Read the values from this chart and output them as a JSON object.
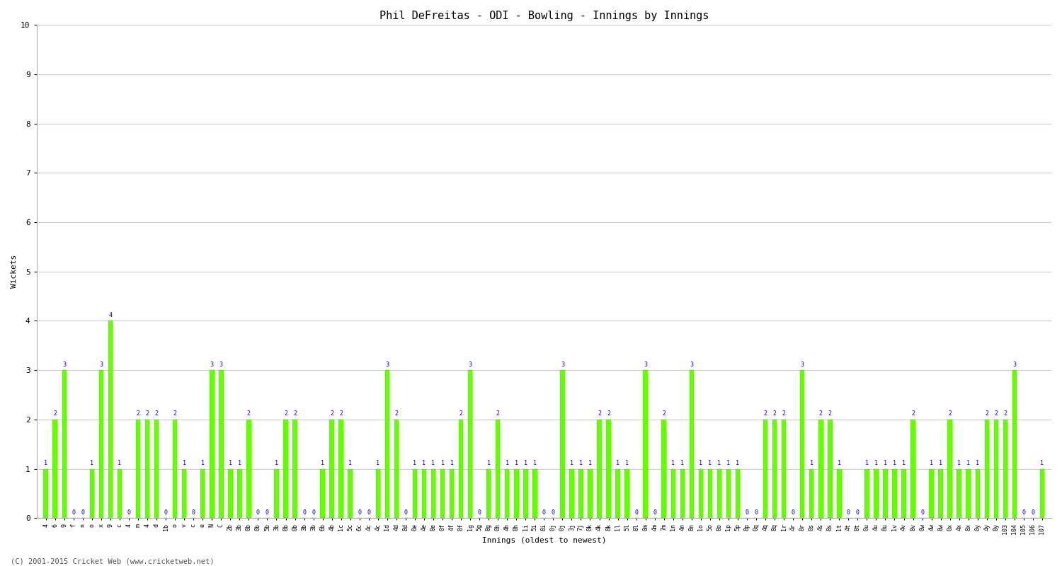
{
  "title": "Phil DeFreitas - ODI - Bowling - Innings by Innings",
  "ylabel": "Wickets",
  "xlabel": "Innings (oldest to newest)",
  "bar_color": "#66ff00",
  "bar_edge_color": "#55cc00",
  "label_color": "#0000cc",
  "background_color": "#ffffff",
  "grid_color": "#cccccc",
  "ylim": [
    0,
    10
  ],
  "yticks": [
    0,
    1,
    2,
    3,
    4,
    5,
    6,
    7,
    8,
    9,
    10
  ],
  "copyright": "(C) 2001-2015 Cricket Web (www.cricketweb.net)",
  "values": [
    1,
    2,
    3,
    0,
    0,
    1,
    3,
    4,
    1,
    0,
    2,
    2,
    2,
    0,
    2,
    1,
    0,
    1,
    3,
    3,
    1,
    1,
    2,
    0,
    0,
    1,
    2,
    2,
    0,
    0,
    1,
    2,
    2,
    1,
    0,
    0,
    1,
    3,
    2,
    0,
    1,
    1,
    1,
    1,
    1,
    2,
    3,
    0,
    1,
    2,
    1,
    1,
    1,
    1,
    0,
    0,
    3,
    1,
    1,
    1,
    2,
    2,
    1,
    1,
    0,
    3,
    0,
    2,
    1,
    1,
    3,
    1,
    1,
    1,
    1,
    1,
    0,
    0,
    2,
    2,
    2,
    0,
    3,
    1,
    2,
    2,
    1,
    0,
    0,
    1,
    1,
    1,
    1,
    1,
    2,
    0,
    1,
    1,
    2,
    1,
    1,
    1,
    2,
    2,
    2,
    3,
    0,
    0,
    1
  ],
  "x_labels": [
    "4",
    "6",
    "9",
    "f",
    "n",
    "o",
    "x",
    "9",
    "c",
    "4",
    "m",
    "4",
    "d",
    "1b",
    "o",
    "v",
    "c",
    "e",
    "N",
    "C",
    "2b",
    "3b",
    "0b",
    "0b",
    "5b",
    "3b",
    "8b",
    "0b",
    "3b",
    "3b",
    "6b",
    "4b",
    "1c",
    "5c",
    "6c",
    "4c",
    "4c",
    "1d",
    "4d",
    "8d",
    "0e",
    "4e",
    "8e",
    "0f",
    "4f",
    "8f",
    "1g",
    "5g",
    "8g",
    "0h",
    "4h",
    "8h",
    "1i",
    "5i",
    "8i",
    "0j",
    "0j",
    "3j",
    "7j",
    "0k",
    "4k",
    "8k",
    "1l",
    "5l",
    "8l",
    "0m",
    "4m",
    "7m",
    "1n",
    "4n",
    "8n",
    "1o",
    "5o",
    "8o",
    "1p",
    "5p",
    "8p",
    "0q",
    "4q",
    "8q",
    "1r",
    "4r",
    "8r",
    "0s",
    "4s",
    "8s",
    "1t",
    "4t",
    "8t",
    "0u",
    "4u",
    "8u",
    "1v",
    "4v",
    "8v",
    "0w",
    "4w",
    "8w",
    "0x",
    "4x",
    "8x",
    "0y",
    "4y",
    "8y",
    "103",
    "104",
    "105",
    "106",
    "107"
  ],
  "title_fontsize": 11,
  "ylabel_fontsize": 8,
  "xlabel_fontsize": 8,
  "ytick_fontsize": 8,
  "xtick_fontsize": 6,
  "label_fontsize": 6
}
